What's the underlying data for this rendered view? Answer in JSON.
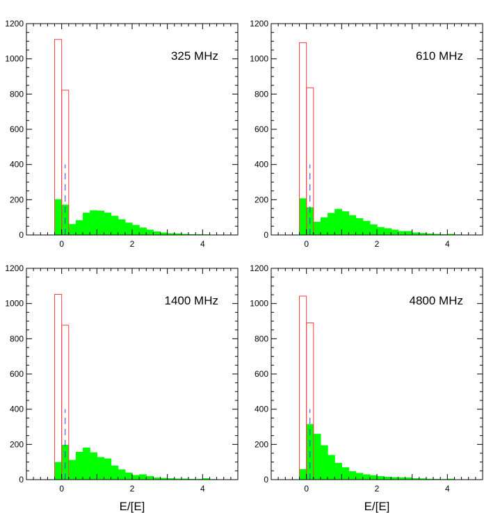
{
  "colors": {
    "fill": "#00ff00",
    "outline": "#ff3b3b",
    "marker": "#3333ff",
    "axes": "#000000"
  },
  "chart_data": [
    {
      "type": "bar",
      "annotation": "325 MHz",
      "xlabel": "",
      "ylabel": "",
      "xlim": [
        -1,
        5
      ],
      "ylim": [
        0,
        1200
      ],
      "xticks": [
        "0",
        "2",
        "4"
      ],
      "yticks": [
        "0",
        "200",
        "400",
        "600",
        "800",
        "1000",
        "1200"
      ],
      "bin_width": 0.2,
      "bin_starts": [
        -0.2,
        0.0,
        0.2,
        0.4,
        0.6,
        0.8,
        1.0,
        1.2,
        1.4,
        1.6,
        1.8,
        2.0,
        2.2,
        2.4,
        2.6,
        2.8,
        3.0,
        3.2,
        3.4,
        3.6,
        3.8,
        4.0,
        4.2,
        4.4,
        4.6
      ],
      "series": [
        {
          "style": "filled",
          "values": [
            203,
            172,
            62,
            84,
            126,
            140,
            138,
            127,
            109,
            89,
            70,
            57,
            42,
            30,
            20,
            14,
            10,
            9,
            6,
            4,
            4,
            3,
            2,
            2,
            1
          ]
        },
        {
          "style": "outline",
          "x": [
            -0.2,
            0.0
          ],
          "values": [
            1110,
            822
          ]
        },
        {
          "style": "dashed",
          "x": 0.1,
          "ymax": 400
        }
      ]
    },
    {
      "type": "bar",
      "annotation": "610 MHz",
      "xlabel": "",
      "ylabel": "",
      "xlim": [
        -1,
        5
      ],
      "ylim": [
        0,
        1200
      ],
      "xticks": [
        "0",
        "2",
        "4"
      ],
      "yticks": [
        "0",
        "200",
        "400",
        "600",
        "800",
        "1000",
        "1200"
      ],
      "bin_width": 0.2,
      "bin_starts": [
        -0.2,
        0.0,
        0.2,
        0.4,
        0.6,
        0.8,
        1.0,
        1.2,
        1.4,
        1.6,
        1.8,
        2.0,
        2.2,
        2.4,
        2.6,
        2.8,
        3.0,
        3.2,
        3.4,
        3.6,
        3.8,
        4.0,
        4.2,
        4.4,
        4.6
      ],
      "series": [
        {
          "style": "filled",
          "values": [
            208,
            157,
            75,
            100,
            125,
            148,
            134,
            112,
            95,
            80,
            60,
            45,
            38,
            30,
            22,
            22,
            14,
            11,
            8,
            6,
            4,
            6,
            3,
            2,
            1
          ]
        },
        {
          "style": "outline",
          "x": [
            -0.2,
            0.0
          ],
          "values": [
            1092,
            836
          ]
        },
        {
          "style": "dashed",
          "x": 0.1,
          "ymax": 400
        }
      ]
    },
    {
      "type": "bar",
      "annotation": "1400 MHz",
      "xlabel": "E/[E]",
      "ylabel": "",
      "xlim": [
        -1,
        5
      ],
      "ylim": [
        0,
        1200
      ],
      "xticks": [
        "0",
        "2",
        "4"
      ],
      "yticks": [
        "0",
        "200",
        "400",
        "600",
        "800",
        "1000",
        "1200"
      ],
      "bin_width": 0.2,
      "bin_starts": [
        -0.2,
        0.0,
        0.2,
        0.4,
        0.6,
        0.8,
        1.0,
        1.2,
        1.4,
        1.6,
        1.8,
        2.0,
        2.2,
        2.4,
        2.6,
        2.8,
        3.0,
        3.2,
        3.4,
        3.6,
        3.8,
        4.0,
        4.2,
        4.4,
        4.6
      ],
      "series": [
        {
          "style": "filled",
          "values": [
            100,
            198,
            112,
            158,
            182,
            155,
            128,
            120,
            80,
            58,
            40,
            26,
            30,
            20,
            12,
            10,
            8,
            6,
            6,
            4,
            4,
            8,
            3,
            2,
            1
          ]
        },
        {
          "style": "outline",
          "x": [
            -0.2,
            0.0
          ],
          "values": [
            1052,
            877
          ]
        },
        {
          "style": "dashed",
          "x": 0.1,
          "ymax": 400
        }
      ]
    },
    {
      "type": "bar",
      "annotation": "4800 MHz",
      "xlabel": "E/[E]",
      "ylabel": "",
      "xlim": [
        -1,
        5
      ],
      "ylim": [
        0,
        1200
      ],
      "xticks": [
        "0",
        "2",
        "4"
      ],
      "yticks": [
        "0",
        "200",
        "400",
        "600",
        "800",
        "1000",
        "1200"
      ],
      "bin_width": 0.2,
      "bin_starts": [
        -0.2,
        0.0,
        0.2,
        0.4,
        0.6,
        0.8,
        1.0,
        1.2,
        1.4,
        1.6,
        1.8,
        2.0,
        2.2,
        2.4,
        2.6,
        2.8,
        3.0,
        3.2,
        3.4,
        3.6,
        3.8,
        4.0,
        4.2,
        4.4,
        4.6
      ],
      "series": [
        {
          "style": "filled",
          "values": [
            60,
            315,
            260,
            195,
            140,
            95,
            70,
            48,
            38,
            30,
            25,
            20,
            16,
            14,
            13,
            12,
            8,
            7,
            5,
            4,
            3,
            5,
            2,
            2,
            1
          ]
        },
        {
          "style": "outline",
          "x": [
            -0.2,
            0.0
          ],
          "values": [
            1042,
            890
          ]
        },
        {
          "style": "dashed",
          "x": 0.1,
          "ymax": 400
        }
      ]
    }
  ]
}
